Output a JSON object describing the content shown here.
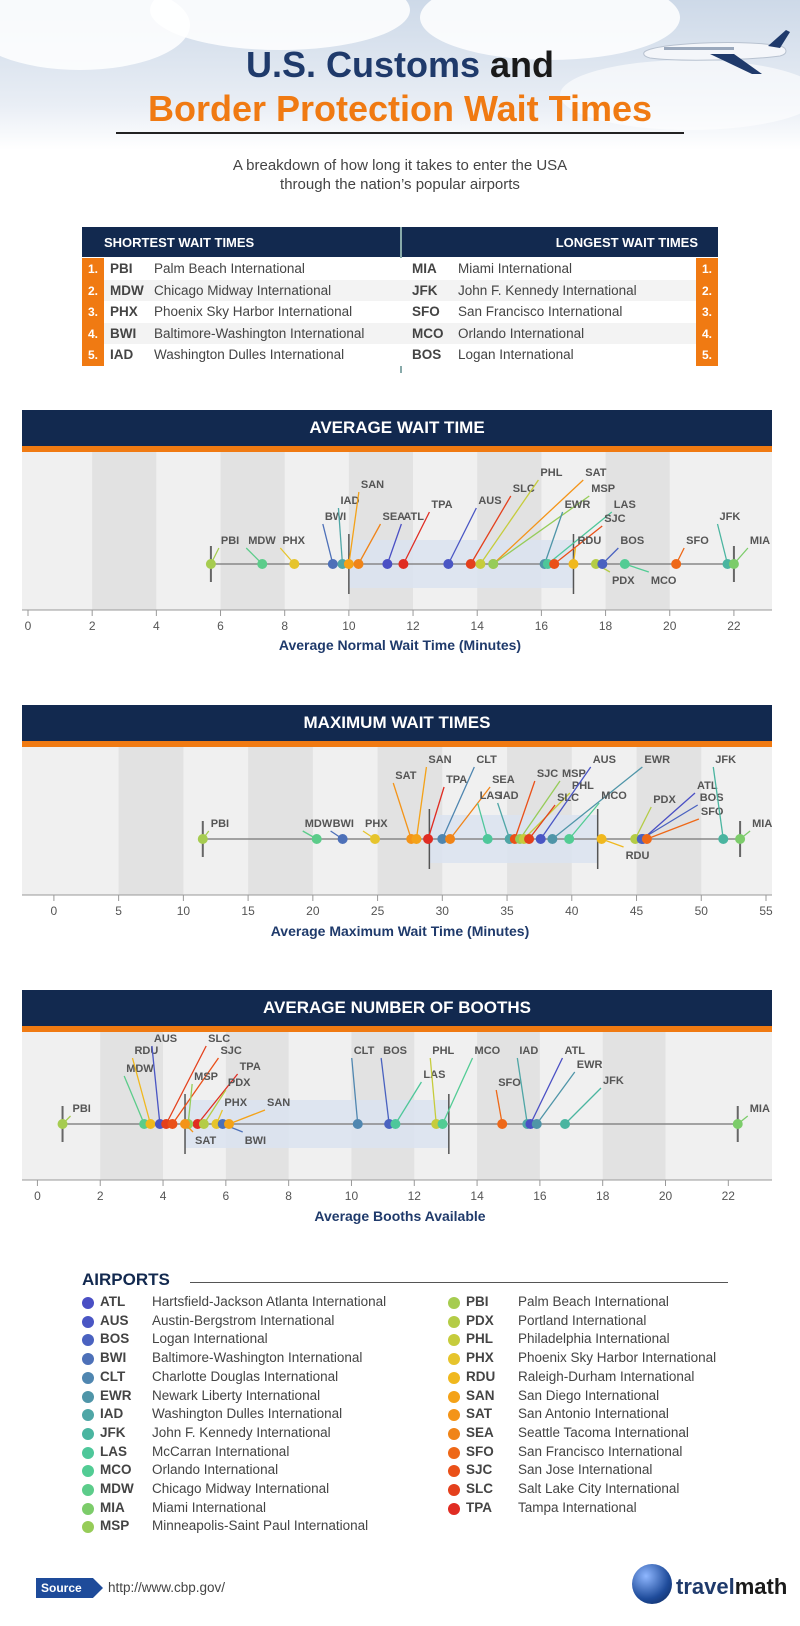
{
  "header": {
    "title_part1": "U.S. Customs",
    "title_part2": "and",
    "title_line2": "Border Protection Wait Times",
    "subtitle_line1": "A  breakdown of how long it takes to enter the USA",
    "subtitle_line2": "through the nation’s popular airports"
  },
  "ranking_table": {
    "shortest_header": "SHORTEST WAIT TIMES",
    "longest_header": "LONGEST WAIT TIMES",
    "shortest": [
      {
        "rank": "1.",
        "code": "PBI",
        "name": "Palm Beach International"
      },
      {
        "rank": "2.",
        "code": "MDW",
        "name": "Chicago Midway International"
      },
      {
        "rank": "3.",
        "code": "PHX",
        "name": "Phoenix Sky Harbor International"
      },
      {
        "rank": "4.",
        "code": "BWI",
        "name": "Baltimore-Washington International"
      },
      {
        "rank": "5.",
        "code": "IAD",
        "name": "Washington Dulles International"
      }
    ],
    "longest": [
      {
        "rank": "1.",
        "code": "MIA",
        "name": "Miami International"
      },
      {
        "rank": "2.",
        "code": "JFK",
        "name": "John F. Kennedy International"
      },
      {
        "rank": "3.",
        "code": "SFO",
        "name": "San Francisco International"
      },
      {
        "rank": "4.",
        "code": "MCO",
        "name": "Orlando International"
      },
      {
        "rank": "5.",
        "code": "BOS",
        "name": "Logan International"
      }
    ]
  },
  "colors": {
    "ATL": "#4a4fc4",
    "AUS": "#4a56c4",
    "BOS": "#4a62c0",
    "BWI": "#4d70b8",
    "CLT": "#4f86b0",
    "EWR": "#4f95a8",
    "IAD": "#4fa6a6",
    "JFK": "#4ab5a0",
    "LAS": "#4ec79a",
    "MCO": "#52cc94",
    "MDW": "#5ccc8a",
    "MIA": "#7ccc6a",
    "MSP": "#96cc58",
    "PBI": "#a6cc50",
    "PDX": "#b4cc46",
    "PHL": "#c6cc3c",
    "PHX": "#e6c42c",
    "RDU": "#f0b81e",
    "SAN": "#f4a218",
    "SAT": "#f49418",
    "SEA": "#f08418",
    "SFO": "#ee6818",
    "SJC": "#ea5018",
    "SLC": "#e4401c",
    "TPA": "#e02c22",
    "header_navy": "#12294f",
    "accent_orange": "#f07a12",
    "title_blue": "#1f3a6b"
  },
  "chart_data": [
    {
      "type": "scatter",
      "title": "AVERAGE WAIT TIME",
      "xlabel": "Average Normal Wait Time (Minutes)",
      "xlim": [
        0,
        23
      ],
      "ticks": [
        0,
        2,
        4,
        6,
        8,
        10,
        12,
        14,
        16,
        18,
        20,
        22
      ],
      "box": [
        10,
        17
      ],
      "whisker": [
        5.7,
        22
      ],
      "points": [
        {
          "code": "PBI",
          "x": 5.7
        },
        {
          "code": "MDW",
          "x": 7.3
        },
        {
          "code": "PHX",
          "x": 8.3
        },
        {
          "code": "BWI",
          "x": 9.5
        },
        {
          "code": "IAD",
          "x": 9.8
        },
        {
          "code": "SAN",
          "x": 10.0
        },
        {
          "code": "SEA",
          "x": 10.3
        },
        {
          "code": "ATL",
          "x": 11.2
        },
        {
          "code": "TPA",
          "x": 11.7
        },
        {
          "code": "AUS",
          "x": 13.1
        },
        {
          "code": "SLC",
          "x": 13.8
        },
        {
          "code": "PHL",
          "x": 14.1
        },
        {
          "code": "SAT",
          "x": 14.5
        },
        {
          "code": "MSP",
          "x": 14.5
        },
        {
          "code": "EWR",
          "x": 16.1
        },
        {
          "code": "LAS",
          "x": 16.2
        },
        {
          "code": "SJC",
          "x": 16.4
        },
        {
          "code": "RDU",
          "x": 17.0
        },
        {
          "code": "PDX",
          "x": 17.7
        },
        {
          "code": "BOS",
          "x": 17.9
        },
        {
          "code": "MCO",
          "x": 18.6
        },
        {
          "code": "SFO",
          "x": 20.2
        },
        {
          "code": "JFK",
          "x": 21.8
        },
        {
          "code": "MIA",
          "x": 22.0
        }
      ]
    },
    {
      "type": "scatter",
      "title": "MAXIMUM WAIT TIMES",
      "xlabel": "Average Maximum Wait Time (Minutes)",
      "xlim": [
        -2,
        55
      ],
      "ticks": [
        0,
        5,
        10,
        15,
        20,
        25,
        30,
        35,
        40,
        45,
        50,
        55
      ],
      "box": [
        29,
        42
      ],
      "whisker": [
        11.5,
        53
      ],
      "points": [
        {
          "code": "PBI",
          "x": 11.5
        },
        {
          "code": "MDW",
          "x": 20.3
        },
        {
          "code": "BWI",
          "x": 22.3
        },
        {
          "code": "PHX",
          "x": 24.8
        },
        {
          "code": "SAT",
          "x": 27.6
        },
        {
          "code": "SAN",
          "x": 28.0
        },
        {
          "code": "TPA",
          "x": 28.9
        },
        {
          "code": "CLT",
          "x": 30.0
        },
        {
          "code": "SEA",
          "x": 30.6
        },
        {
          "code": "LAS",
          "x": 33.5
        },
        {
          "code": "IAD",
          "x": 35.2
        },
        {
          "code": "SJC",
          "x": 35.6
        },
        {
          "code": "MSP",
          "x": 36.0
        },
        {
          "code": "PHL",
          "x": 36.3
        },
        {
          "code": "SLC",
          "x": 36.7
        },
        {
          "code": "AUS",
          "x": 37.6
        },
        {
          "code": "EWR",
          "x": 38.5
        },
        {
          "code": "MCO",
          "x": 39.8
        },
        {
          "code": "RDU",
          "x": 42.3
        },
        {
          "code": "ATL",
          "x": 45.5
        },
        {
          "code": "PDX",
          "x": 44.9
        },
        {
          "code": "BOS",
          "x": 45.4
        },
        {
          "code": "SFO",
          "x": 45.8
        },
        {
          "code": "JFK",
          "x": 51.7
        },
        {
          "code": "MIA",
          "x": 53.0
        }
      ]
    },
    {
      "type": "scatter",
      "title": "AVERAGE NUMBER OF BOOTHS",
      "xlabel": "Average Booths Available",
      "xlim": [
        -0.3,
        23.2
      ],
      "ticks": [
        0,
        2,
        4,
        6,
        8,
        10,
        12,
        14,
        16,
        18,
        20,
        22
      ],
      "box": [
        4.7,
        13.1
      ],
      "whisker": [
        0.8,
        22.3
      ],
      "points": [
        {
          "code": "PBI",
          "x": 0.8
        },
        {
          "code": "MDW",
          "x": 3.4
        },
        {
          "code": "RDU",
          "x": 3.6
        },
        {
          "code": "AUS",
          "x": 3.9
        },
        {
          "code": "SLC",
          "x": 4.1
        },
        {
          "code": "SJC",
          "x": 4.3
        },
        {
          "code": "TPA",
          "x": 5.1
        },
        {
          "code": "PDX",
          "x": 5.3
        },
        {
          "code": "MSP",
          "x": 4.8
        },
        {
          "code": "SAT",
          "x": 4.7
        },
        {
          "code": "PHX",
          "x": 5.7
        },
        {
          "code": "BWI",
          "x": 5.9
        },
        {
          "code": "SAN",
          "x": 6.1
        },
        {
          "code": "CLT",
          "x": 10.2
        },
        {
          "code": "BOS",
          "x": 11.2
        },
        {
          "code": "LAS",
          "x": 11.4
        },
        {
          "code": "PHL",
          "x": 12.7
        },
        {
          "code": "MCO",
          "x": 12.9
        },
        {
          "code": "SFO",
          "x": 14.8
        },
        {
          "code": "IAD",
          "x": 15.6
        },
        {
          "code": "ATL",
          "x": 15.7
        },
        {
          "code": "EWR",
          "x": 15.9
        },
        {
          "code": "JFK",
          "x": 16.8
        },
        {
          "code": "MIA",
          "x": 22.3
        }
      ]
    }
  ],
  "legend": {
    "title": "AIRPORTS",
    "items": [
      {
        "code": "ATL",
        "name": "Hartsfield-Jackson Atlanta International"
      },
      {
        "code": "AUS",
        "name": "Austin-Bergstrom International"
      },
      {
        "code": "BOS",
        "name": "Logan International"
      },
      {
        "code": "BWI",
        "name": "Baltimore-Washington International"
      },
      {
        "code": "CLT",
        "name": "Charlotte Douglas International"
      },
      {
        "code": "EWR",
        "name": "Newark Liberty International"
      },
      {
        "code": "IAD",
        "name": "Washington Dulles International"
      },
      {
        "code": "JFK",
        "name": "John F. Kennedy International"
      },
      {
        "code": "LAS",
        "name": "McCarran International"
      },
      {
        "code": "MCO",
        "name": "Orlando International"
      },
      {
        "code": "MDW",
        "name": "Chicago Midway International"
      },
      {
        "code": "MIA",
        "name": "Miami International"
      },
      {
        "code": "MSP",
        "name": "Minneapolis-Saint Paul International"
      },
      {
        "code": "PBI",
        "name": "Palm Beach International"
      },
      {
        "code": "PDX",
        "name": "Portland International"
      },
      {
        "code": "PHL",
        "name": "Philadelphia International"
      },
      {
        "code": "PHX",
        "name": "Phoenix Sky Harbor International"
      },
      {
        "code": "RDU",
        "name": "Raleigh-Durham International"
      },
      {
        "code": "SAN",
        "name": "San Diego International"
      },
      {
        "code": "SAT",
        "name": "San Antonio International"
      },
      {
        "code": "SEA",
        "name": "Seattle Tacoma International"
      },
      {
        "code": "SFO",
        "name": "San Francisco International"
      },
      {
        "code": "SJC",
        "name": "San Jose International"
      },
      {
        "code": "SLC",
        "name": "Salt Lake City International"
      },
      {
        "code": "TPA",
        "name": "Tampa International"
      }
    ]
  },
  "footer": {
    "source_label": "Source",
    "source_url": "http://www.cbp.gov/",
    "logo_part1": "travel",
    "logo_part2": "math"
  }
}
